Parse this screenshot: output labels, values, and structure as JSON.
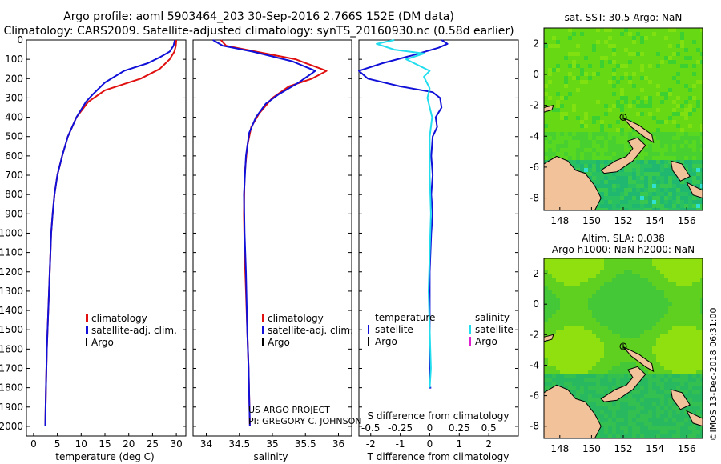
{
  "header": {
    "title_line1": "Argo profile: aoml 5903464_203 30-Sep-2016 2.766S 152E (DM data)",
    "title_line2": "Climatology: CARS2009. Satellite-adjusted climatology: synTS_20160930.nc (0.58d earlier)"
  },
  "colors": {
    "climatology": "#e01010",
    "satellite": "#1010d8",
    "argo": "#000000",
    "sat_salinity": "#22ddee",
    "argo_salinity": "#e020d0",
    "land": "#f2c29a",
    "ocean_base": "#66d814"
  },
  "chart_data": [
    {
      "id": "temperature",
      "type": "line",
      "xlabel": "temperature (deg C)",
      "ylabel": "",
      "xlim": [
        -1.5,
        32
      ],
      "ylim": [
        2050,
        0
      ],
      "xticks": [
        0,
        5,
        10,
        15,
        20,
        25,
        30
      ],
      "yticks": [
        0,
        100,
        200,
        300,
        400,
        500,
        600,
        700,
        800,
        900,
        1000,
        1100,
        1200,
        1300,
        1400,
        1500,
        1600,
        1700,
        1800,
        1900,
        2000
      ],
      "legend": [
        {
          "label": "climatology"
        },
        {
          "label": "satellite-adj. clim."
        },
        {
          "label": "Argo"
        }
      ],
      "series": [
        {
          "name": "climatology",
          "points": [
            [
              30.0,
              0
            ],
            [
              29.9,
              30
            ],
            [
              29.6,
              60
            ],
            [
              28.6,
              100
            ],
            [
              26.5,
              150
            ],
            [
              22.5,
              200
            ],
            [
              15,
              260
            ],
            [
              11.5,
              320
            ],
            [
              9,
              400
            ],
            [
              7.2,
              500
            ],
            [
              6,
              600
            ],
            [
              5,
              700
            ],
            [
              4.4,
              800
            ],
            [
              4,
              900
            ],
            [
              3.7,
              1000
            ],
            [
              3.4,
              1200
            ],
            [
              3.1,
              1400
            ],
            [
              2.8,
              1600
            ],
            [
              2.6,
              1800
            ],
            [
              2.45,
              2000
            ]
          ]
        },
        {
          "name": "satellite-adj. clim.",
          "points": [
            [
              29.7,
              0
            ],
            [
              29.4,
              30
            ],
            [
              28.6,
              60
            ],
            [
              26.5,
              90
            ],
            [
              24,
              120
            ],
            [
              19,
              160
            ],
            [
              15,
              220
            ],
            [
              12.5,
              280
            ],
            [
              11,
              320
            ],
            [
              9,
              400
            ],
            [
              7.2,
              500
            ],
            [
              6,
              600
            ],
            [
              5,
              700
            ],
            [
              4.4,
              800
            ],
            [
              4,
              900
            ],
            [
              3.7,
              1000
            ],
            [
              3.4,
              1200
            ],
            [
              3.1,
              1400
            ],
            [
              2.8,
              1600
            ],
            [
              2.6,
              1800
            ],
            [
              2.45,
              2000
            ]
          ]
        }
      ]
    },
    {
      "id": "salinity",
      "type": "line",
      "xlabel": "salinity",
      "xlim": [
        33.8,
        36.2
      ],
      "ylim": [
        2050,
        0
      ],
      "xticks": [
        34,
        34.5,
        35,
        35.5,
        36
      ],
      "legend": [
        {
          "label": "climatology"
        },
        {
          "label": "satellite-adj. clim."
        },
        {
          "label": "Argo"
        }
      ],
      "series": [
        {
          "name": "climatology",
          "points": [
            [
              34.22,
              0
            ],
            [
              34.3,
              30
            ],
            [
              34.75,
              60
            ],
            [
              35.35,
              100
            ],
            [
              35.82,
              160
            ],
            [
              35.6,
              200
            ],
            [
              35.25,
              240
            ],
            [
              35,
              300
            ],
            [
              34.8,
              380
            ],
            [
              34.68,
              450
            ],
            [
              34.62,
              550
            ],
            [
              34.58,
              700
            ],
            [
              34.57,
              900
            ],
            [
              34.58,
              1100
            ],
            [
              34.6,
              1300
            ],
            [
              34.62,
              1500
            ],
            [
              34.64,
              1700
            ],
            [
              34.66,
              2000
            ]
          ]
        },
        {
          "name": "satellite-adj. clim.",
          "points": [
            [
              34.1,
              0
            ],
            [
              34.25,
              30
            ],
            [
              34.7,
              60
            ],
            [
              35.3,
              110
            ],
            [
              35.65,
              160
            ],
            [
              35.4,
              220
            ],
            [
              35.1,
              280
            ],
            [
              34.9,
              330
            ],
            [
              34.75,
              400
            ],
            [
              34.65,
              480
            ],
            [
              34.6,
              600
            ],
            [
              34.57,
              800
            ],
            [
              34.58,
              1000
            ],
            [
              34.6,
              1200
            ],
            [
              34.62,
              1500
            ],
            [
              34.64,
              1700
            ],
            [
              34.66,
              2000
            ]
          ]
        }
      ]
    },
    {
      "id": "difference",
      "type": "line",
      "xlabel": "T difference from climatology",
      "x2label": "S difference from climatology",
      "xlim": [
        -2.4,
        3.0
      ],
      "x2lim": [
        -0.6,
        0.75
      ],
      "ylim": [
        2050,
        0
      ],
      "xticks": [
        -2,
        -1,
        0,
        1,
        2
      ],
      "x2ticks": [
        "-0.5",
        "-0.25",
        "0",
        "0.25",
        "0.5"
      ],
      "legend_left": {
        "header": "temperature",
        "items": [
          {
            "label": "satellite"
          },
          {
            "label": "Argo"
          }
        ]
      },
      "legend_right": {
        "header": "salinity",
        "items": [
          {
            "label": "satellite"
          },
          {
            "label": "Argo"
          }
        ]
      },
      "series": [
        {
          "name": "T satellite",
          "points": [
            [
              0.4,
              0
            ],
            [
              0.6,
              20
            ],
            [
              0.3,
              40
            ],
            [
              -0.6,
              80
            ],
            [
              -1.6,
              120
            ],
            [
              -2.4,
              160
            ],
            [
              -2.1,
              200
            ],
            [
              -1,
              240
            ],
            [
              0.1,
              270
            ],
            [
              0.35,
              300
            ],
            [
              0.4,
              350
            ],
            [
              0.2,
              400
            ],
            [
              0.25,
              450
            ],
            [
              0.1,
              500
            ],
            [
              0.05,
              600
            ],
            [
              0.1,
              700
            ],
            [
              0.05,
              800
            ],
            [
              0.1,
              900
            ],
            [
              0.05,
              1000
            ],
            [
              0.0,
              1200
            ],
            [
              0.0,
              1400
            ],
            [
              0.0,
              1600
            ],
            [
              0.0,
              1800
            ],
            [
              0.05,
              1800
            ]
          ]
        },
        {
          "name": "S satellite",
          "points": [
            [
              -0.3,
              0
            ],
            [
              -0.45,
              20
            ],
            [
              -0.3,
              50
            ],
            [
              -0.05,
              70
            ],
            [
              -0.2,
              100
            ],
            [
              -0.1,
              130
            ],
            [
              0.0,
              160
            ],
            [
              -0.05,
              190
            ],
            [
              0.0,
              250
            ],
            [
              -0.02,
              300
            ],
            [
              0.02,
              400
            ],
            [
              0.0,
              500
            ],
            [
              0.0,
              700
            ],
            [
              0.01,
              900
            ],
            [
              0.0,
              1100
            ],
            [
              -0.01,
              1300
            ],
            [
              0.0,
              1500
            ],
            [
              0.01,
              1700
            ],
            [
              0.0,
              1800
            ]
          ]
        }
      ]
    },
    {
      "id": "sst-map",
      "type": "heatmap",
      "title": "sat. SST: 30.5 Argo: NaN",
      "xlim": [
        147,
        157
      ],
      "ylim": [
        -8.8,
        3
      ],
      "xticks": [
        148,
        150,
        152,
        154,
        156
      ],
      "yticks": [
        2,
        0,
        -2,
        -4,
        -6,
        -8
      ]
    },
    {
      "id": "sla-map",
      "type": "heatmap",
      "title_line1": "Altim. SLA: 0.038",
      "title_line2": "Argo h1000: NaN h2000: NaN",
      "xlim": [
        147,
        157
      ],
      "ylim": [
        -8.8,
        3
      ],
      "xticks": [
        148,
        150,
        152,
        154,
        156
      ],
      "yticks": [
        2,
        0,
        -2,
        -4,
        -6,
        -8
      ]
    }
  ],
  "credits": {
    "project": "US ARGO PROJECT",
    "pi": "PI: GREGORY C. JOHNSON",
    "stamp": "©IMOS 13-Dec-2018 06:31:00"
  }
}
